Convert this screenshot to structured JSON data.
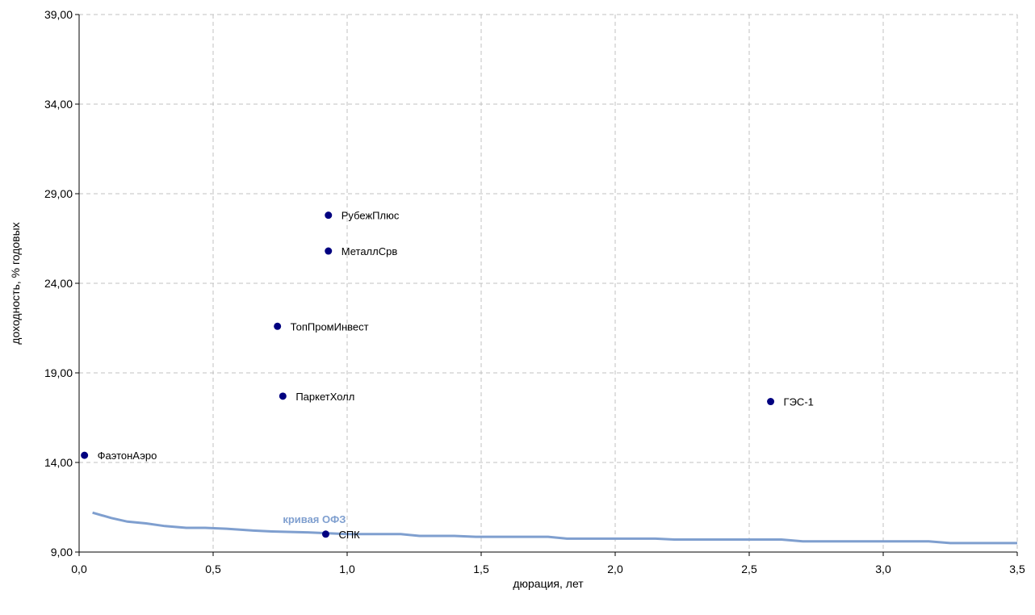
{
  "chart_data": {
    "type": "scatter",
    "xlabel": "дюрация, лет",
    "ylabel": "доходность, % годовых",
    "xlim": [
      0,
      3.5
    ],
    "ylim": [
      9,
      39
    ],
    "x_ticks": [
      "0,0",
      "0,5",
      "1,0",
      "1,5",
      "2,0",
      "2,5",
      "3,0",
      "3,5"
    ],
    "x_tick_values": [
      0,
      0.5,
      1.0,
      1.5,
      2.0,
      2.5,
      3.0,
      3.5
    ],
    "y_ticks": [
      "9,00",
      "14,00",
      "19,00",
      "24,00",
      "29,00",
      "34,00",
      "39,00"
    ],
    "y_tick_values": [
      9,
      14,
      19,
      24,
      29,
      34,
      39
    ],
    "grid": true,
    "points": [
      {
        "label": "ФаэтонАэро",
        "x": 0.02,
        "y": 14.4
      },
      {
        "label": "ТопПромИнвест",
        "x": 0.74,
        "y": 21.6
      },
      {
        "label": "ПаркетХолл",
        "x": 0.76,
        "y": 17.7
      },
      {
        "label": "РубежПлюс",
        "x": 0.93,
        "y": 27.8
      },
      {
        "label": "МеталлСрв",
        "x": 0.93,
        "y": 25.8
      },
      {
        "label": "СПК",
        "x": 0.92,
        "y": 10.0
      },
      {
        "label": "ГЭС-1",
        "x": 2.58,
        "y": 17.4
      }
    ],
    "series": [
      {
        "name": "кривая ОФЗ",
        "x": [
          0.05,
          0.12,
          0.18,
          0.25,
          0.32,
          0.4,
          0.47,
          0.55,
          0.65,
          0.72,
          0.85,
          1.0,
          1.2,
          1.27,
          1.4,
          1.48,
          1.75,
          1.82,
          2.15,
          2.22,
          2.62,
          2.7,
          3.17,
          3.25,
          3.5
        ],
        "y": [
          11.2,
          10.9,
          10.7,
          10.6,
          10.45,
          10.35,
          10.35,
          10.3,
          10.2,
          10.15,
          10.1,
          10.0,
          10.0,
          9.9,
          9.9,
          9.85,
          9.85,
          9.75,
          9.75,
          9.7,
          9.7,
          9.6,
          9.6,
          9.5,
          9.5
        ]
      }
    ],
    "colors": {
      "points": "#000080",
      "curve": "#7f9fcf",
      "grid": "#c0c0c0",
      "axis": "#000000"
    }
  }
}
